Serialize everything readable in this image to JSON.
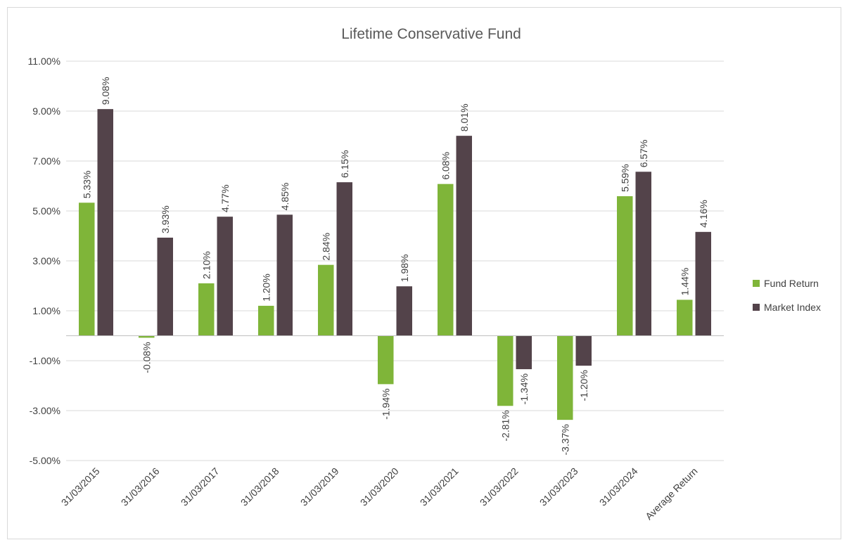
{
  "chart_data": {
    "type": "bar",
    "title": "Lifetime Conservative Fund",
    "categories": [
      "31/03/2015",
      "31/03/2016",
      "31/03/2017",
      "31/03/2018",
      "31/03/2019",
      "31/03/2020",
      "31/03/2021",
      "31/03/2022",
      "31/03/2023",
      "31/03/2024",
      "Average Return"
    ],
    "series": [
      {
        "name": "Fund Return",
        "color": "#7fb539",
        "values": [
          5.33,
          -0.08,
          2.1,
          1.2,
          2.84,
          -1.94,
          6.08,
          -2.81,
          -3.37,
          5.59,
          1.44
        ],
        "labels": [
          "5.33%",
          "-0.08%",
          "2.10%",
          "1.20%",
          "2.84%",
          "-1.94%",
          "6.08%",
          "-2.81%",
          "-3.37%",
          "5.59%",
          "1.44%"
        ]
      },
      {
        "name": "Market Index",
        "color": "#53434a",
        "values": [
          9.08,
          3.93,
          4.77,
          4.85,
          6.15,
          1.98,
          8.01,
          -1.34,
          -1.2,
          6.57,
          4.16
        ],
        "labels": [
          "9.08%",
          "3.93%",
          "4.77%",
          "4.85%",
          "6.15%",
          "1.98%",
          "8.01%",
          "-1.34%",
          "-1.20%",
          "6.57%",
          "4.16%"
        ]
      }
    ],
    "ylim": [
      -5,
      11
    ],
    "yticks": [
      11,
      9,
      7,
      5,
      3,
      1,
      -1,
      -3,
      -5
    ],
    "ytick_labels": [
      "11.00%",
      "9.00%",
      "7.00%",
      "5.00%",
      "3.00%",
      "1.00%",
      "-1.00%",
      "-3.00%",
      "-5.00%"
    ],
    "grid": true,
    "legend_position": "right"
  }
}
